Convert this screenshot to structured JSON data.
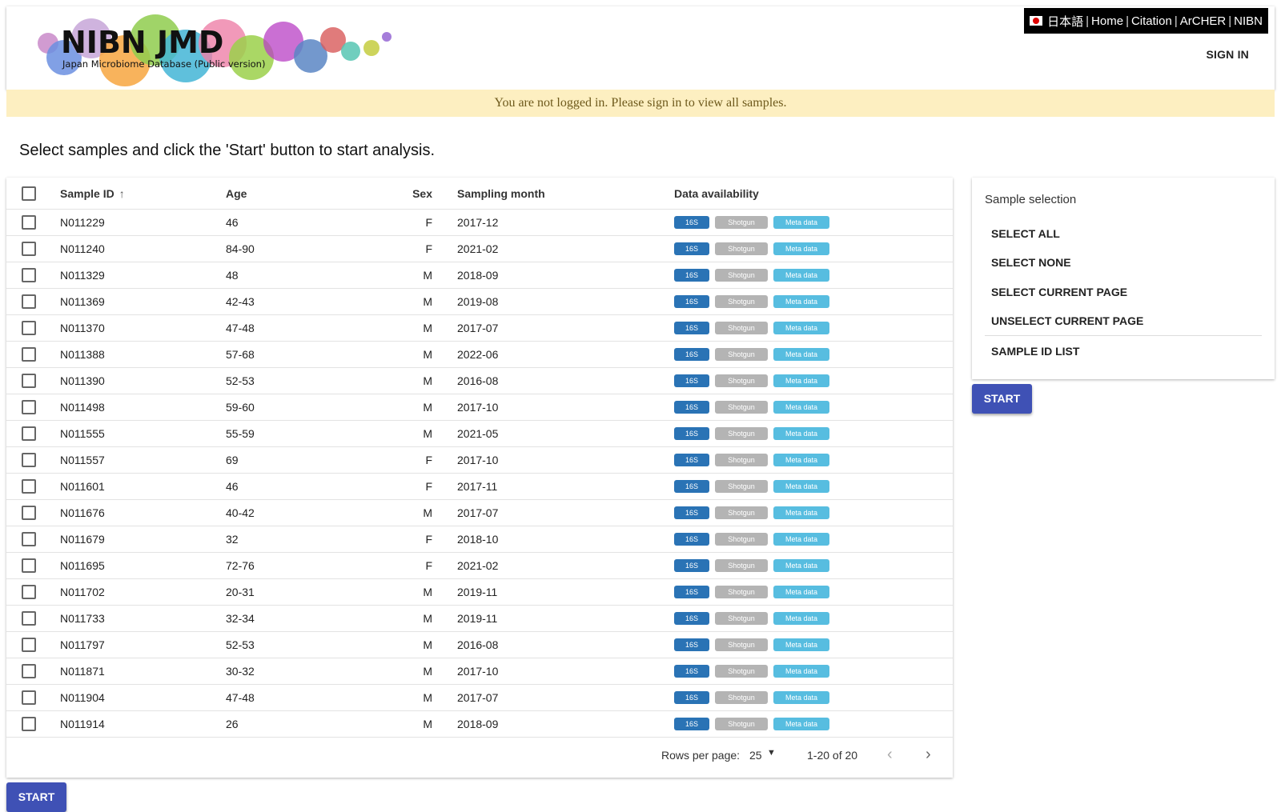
{
  "header": {
    "logo_text": "NIBN JMD",
    "logo_subtitle": "Japan Microbiome Database (Public version)",
    "nav": {
      "language": "日本語",
      "links": [
        "Home",
        "Citation",
        "ArCHER",
        "NIBN"
      ],
      "separator": "|"
    },
    "sign_in_label": "SIGN IN"
  },
  "banner": {
    "message": "You are not logged in. Please sign in to view all samples."
  },
  "instruction": "Select samples and click the 'Start' button to start analysis.",
  "table": {
    "columns": {
      "sample_id": "Sample ID",
      "age": "Age",
      "sex": "Sex",
      "sampling_month": "Sampling month",
      "data_availability": "Data availability"
    },
    "badges": {
      "b16s": "16S",
      "shotgun": "Shotgun",
      "meta": "Meta data"
    },
    "rows": [
      {
        "id": "N011229",
        "age": "46",
        "sex": "F",
        "month": "2017-12"
      },
      {
        "id": "N011240",
        "age": "84-90",
        "sex": "F",
        "month": "2021-02"
      },
      {
        "id": "N011329",
        "age": "48",
        "sex": "M",
        "month": "2018-09"
      },
      {
        "id": "N011369",
        "age": "42-43",
        "sex": "M",
        "month": "2019-08"
      },
      {
        "id": "N011370",
        "age": "47-48",
        "sex": "M",
        "month": "2017-07"
      },
      {
        "id": "N011388",
        "age": "57-68",
        "sex": "M",
        "month": "2022-06"
      },
      {
        "id": "N011390",
        "age": "52-53",
        "sex": "M",
        "month": "2016-08"
      },
      {
        "id": "N011498",
        "age": "59-60",
        "sex": "M",
        "month": "2017-10"
      },
      {
        "id": "N011555",
        "age": "55-59",
        "sex": "M",
        "month": "2021-05"
      },
      {
        "id": "N011557",
        "age": "69",
        "sex": "F",
        "month": "2017-10"
      },
      {
        "id": "N011601",
        "age": "46",
        "sex": "F",
        "month": "2017-11"
      },
      {
        "id": "N011676",
        "age": "40-42",
        "sex": "M",
        "month": "2017-07"
      },
      {
        "id": "N011679",
        "age": "32",
        "sex": "F",
        "month": "2018-10"
      },
      {
        "id": "N011695",
        "age": "72-76",
        "sex": "F",
        "month": "2021-02"
      },
      {
        "id": "N011702",
        "age": "20-31",
        "sex": "M",
        "month": "2019-11"
      },
      {
        "id": "N011733",
        "age": "32-34",
        "sex": "M",
        "month": "2019-11"
      },
      {
        "id": "N011797",
        "age": "52-53",
        "sex": "M",
        "month": "2016-08"
      },
      {
        "id": "N011871",
        "age": "30-32",
        "sex": "M",
        "month": "2017-10"
      },
      {
        "id": "N011904",
        "age": "47-48",
        "sex": "M",
        "month": "2017-07"
      },
      {
        "id": "N011914",
        "age": "26",
        "sex": "M",
        "month": "2018-09"
      }
    ],
    "pagination": {
      "rows_per_page_label": "Rows per page:",
      "rows_per_page_value": "25",
      "range": "1-20 of 20"
    }
  },
  "side_panel": {
    "title": "Sample selection",
    "items": [
      "SELECT ALL",
      "SELECT NONE",
      "SELECT CURRENT PAGE",
      "UNSELECT CURRENT PAGE",
      "SAMPLE ID LIST"
    ]
  },
  "start_label": "START",
  "colors": {
    "primary": "#3f51b5",
    "badge_16s": "#2a73b5",
    "badge_shotgun": "#b4b4b4",
    "badge_meta": "#57bde0",
    "banner_bg": "#fdefc1"
  }
}
